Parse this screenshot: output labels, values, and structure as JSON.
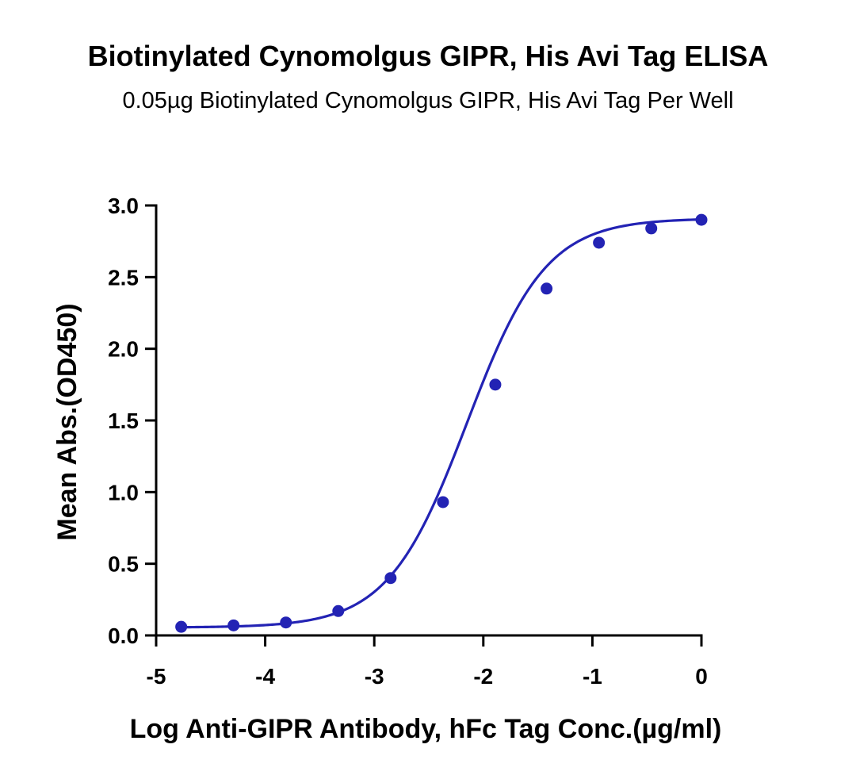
{
  "chart_data": {
    "type": "scatter",
    "title": "Biotinylated Cynomolgus GIPR, His Avi Tag ELISA",
    "subtitle": "0.05µg Biotinylated Cynomolgus GIPR, His Avi Tag Per Well",
    "xlabel": "Log Anti-GIPR Antibody, hFc Tag Conc.(µg/ml)",
    "ylabel": "Mean Abs.(OD450)",
    "xlim": [
      -5,
      0
    ],
    "ylim": [
      0,
      3.0
    ],
    "x_ticks": [
      -5,
      -4,
      -3,
      -2,
      -1,
      0
    ],
    "y_ticks": [
      0.0,
      0.5,
      1.0,
      1.5,
      2.0,
      2.5,
      3.0
    ],
    "x_tick_labels": [
      "-5",
      "-4",
      "-3",
      "-2",
      "-1",
      "0"
    ],
    "y_tick_labels": [
      "0.0",
      "0.5",
      "1.0",
      "1.5",
      "2.0",
      "2.5",
      "3.0"
    ],
    "grid": false,
    "legend": "none",
    "series_color": "#2323b4",
    "series": [
      {
        "x": [
          -4.77,
          -4.29,
          -3.81,
          -3.33,
          -2.85,
          -2.37,
          -1.89,
          -1.42,
          -0.94,
          -0.46,
          0.0
        ],
        "y": [
          0.06,
          0.07,
          0.09,
          0.17,
          0.4,
          0.93,
          1.75,
          2.42,
          2.74,
          2.84,
          2.9
        ]
      }
    ],
    "fit_curve": {
      "model": "4PL",
      "bottom": 0.055,
      "top": 2.91,
      "logEC50": -2.15,
      "hill": 1.2
    }
  }
}
